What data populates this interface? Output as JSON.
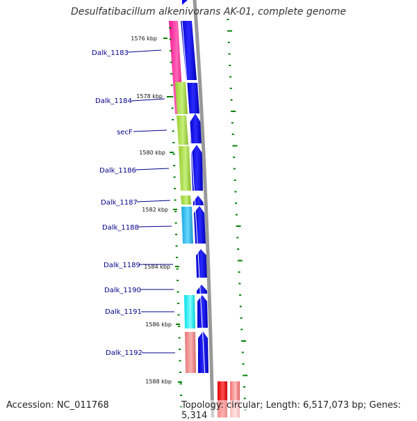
{
  "title": "Desulfatibacillum alkenivorans AK-01, complete genome",
  "accession": "Accession: NC_011768",
  "summary": "Topology: circular; Length: 6,517,073 bp; Genes: 5,314",
  "ticks": [
    "1576 kbp",
    "1578 kbp",
    "1580 kbp",
    "1582 kbp",
    "1584 kbp",
    "1586 kbp",
    "1588 kbp"
  ],
  "genes": [
    {
      "name": "Dalk_1183",
      "cog_color": "#ff1493"
    },
    {
      "name": "Dalk_1184",
      "cog_color": "#9acd32"
    },
    {
      "name": "secF",
      "cog_color": "#9acd32"
    },
    {
      "name": "Dalk_1186",
      "cog_color": "#9acd32"
    },
    {
      "name": "Dalk_1187",
      "cog_color": "#9acd32"
    },
    {
      "name": "Dalk_1188",
      "cog_color": "#00bfff"
    },
    {
      "name": "Dalk_1189",
      "cog_color": null
    },
    {
      "name": "Dalk_1190",
      "cog_color": null
    },
    {
      "name": "Dalk_1191",
      "cog_color": "#00ffff"
    },
    {
      "name": "Dalk_1192",
      "cog_color": "#f08080"
    }
  ],
  "colors": {
    "forward_cds": "#0000ee",
    "backbone": "#999999",
    "gc_skew": "#008000",
    "rna": "#ff0000",
    "label_text": "#00008b"
  }
}
